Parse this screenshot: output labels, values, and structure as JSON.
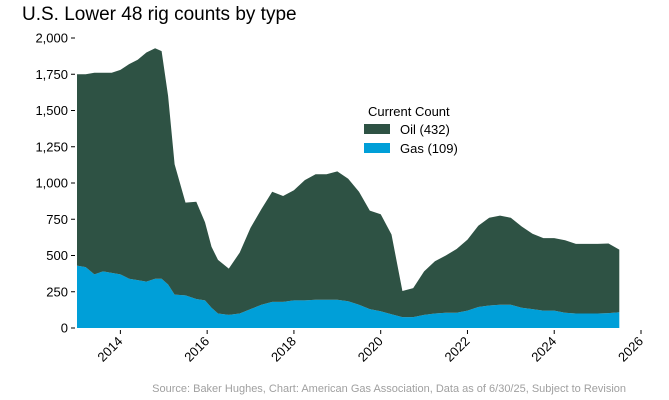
{
  "chart_data": {
    "type": "area",
    "stacked": true,
    "title": "U.S. Lower 48 rig counts by type",
    "xlabel": "",
    "ylabel": "",
    "xlim": [
      2013.0,
      2026.0
    ],
    "ylim": [
      0,
      2000
    ],
    "x_ticks": [
      2014,
      2016,
      2018,
      2020,
      2022,
      2024,
      2026
    ],
    "x_tick_labels": [
      "2014",
      "2016",
      "2018",
      "2020",
      "2022",
      "2024",
      "2026"
    ],
    "y_ticks": [
      0,
      250,
      500,
      750,
      1000,
      1250,
      1500,
      1750,
      2000
    ],
    "y_tick_labels": [
      "0",
      "250",
      "500",
      "750",
      "1,000",
      "1,250",
      "1,500",
      "1,750",
      "2,000"
    ],
    "grid": false,
    "legend": {
      "title": "Current Count",
      "placement": "upper-center"
    },
    "series": [
      {
        "name": "Gas (109)",
        "color": "#009fd8",
        "points": [
          [
            2013.0,
            430
          ],
          [
            2013.2,
            420
          ],
          [
            2013.4,
            370
          ],
          [
            2013.6,
            390
          ],
          [
            2013.8,
            380
          ],
          [
            2014.0,
            370
          ],
          [
            2014.2,
            340
          ],
          [
            2014.4,
            330
          ],
          [
            2014.6,
            320
          ],
          [
            2014.8,
            340
          ],
          [
            2014.95,
            340
          ],
          [
            2015.1,
            300
          ],
          [
            2015.25,
            230
          ],
          [
            2015.5,
            225
          ],
          [
            2015.75,
            200
          ],
          [
            2015.95,
            190
          ],
          [
            2016.1,
            140
          ],
          [
            2016.25,
            100
          ],
          [
            2016.5,
            90
          ],
          [
            2016.75,
            100
          ],
          [
            2017.0,
            130
          ],
          [
            2017.25,
            160
          ],
          [
            2017.5,
            180
          ],
          [
            2017.75,
            180
          ],
          [
            2018.0,
            190
          ],
          [
            2018.25,
            190
          ],
          [
            2018.5,
            195
          ],
          [
            2018.75,
            195
          ],
          [
            2019.0,
            195
          ],
          [
            2019.25,
            185
          ],
          [
            2019.5,
            160
          ],
          [
            2019.75,
            130
          ],
          [
            2020.0,
            115
          ],
          [
            2020.25,
            95
          ],
          [
            2020.5,
            75
          ],
          [
            2020.75,
            75
          ],
          [
            2021.0,
            90
          ],
          [
            2021.25,
            100
          ],
          [
            2021.5,
            105
          ],
          [
            2021.75,
            105
          ],
          [
            2022.0,
            120
          ],
          [
            2022.25,
            145
          ],
          [
            2022.5,
            155
          ],
          [
            2022.75,
            160
          ],
          [
            2023.0,
            160
          ],
          [
            2023.25,
            140
          ],
          [
            2023.5,
            130
          ],
          [
            2023.75,
            120
          ],
          [
            2024.0,
            120
          ],
          [
            2024.25,
            105
          ],
          [
            2024.5,
            100
          ],
          [
            2024.75,
            100
          ],
          [
            2025.0,
            100
          ],
          [
            2025.25,
            103
          ],
          [
            2025.5,
            109
          ]
        ]
      },
      {
        "name": "Oil (432)",
        "color": "#2e5244",
        "points": [
          [
            2013.0,
            1320
          ],
          [
            2013.2,
            1330
          ],
          [
            2013.4,
            1390
          ],
          [
            2013.6,
            1370
          ],
          [
            2013.8,
            1380
          ],
          [
            2014.0,
            1410
          ],
          [
            2014.2,
            1480
          ],
          [
            2014.4,
            1520
          ],
          [
            2014.6,
            1580
          ],
          [
            2014.8,
            1590
          ],
          [
            2014.95,
            1570
          ],
          [
            2015.1,
            1300
          ],
          [
            2015.25,
            900
          ],
          [
            2015.5,
            640
          ],
          [
            2015.75,
            670
          ],
          [
            2015.95,
            540
          ],
          [
            2016.1,
            420
          ],
          [
            2016.25,
            370
          ],
          [
            2016.5,
            320
          ],
          [
            2016.75,
            420
          ],
          [
            2017.0,
            560
          ],
          [
            2017.25,
            660
          ],
          [
            2017.5,
            760
          ],
          [
            2017.75,
            730
          ],
          [
            2018.0,
            760
          ],
          [
            2018.25,
            830
          ],
          [
            2018.5,
            865
          ],
          [
            2018.75,
            865
          ],
          [
            2019.0,
            885
          ],
          [
            2019.25,
            845
          ],
          [
            2019.5,
            780
          ],
          [
            2019.75,
            680
          ],
          [
            2020.0,
            670
          ],
          [
            2020.25,
            550
          ],
          [
            2020.5,
            180
          ],
          [
            2020.75,
            200
          ],
          [
            2021.0,
            300
          ],
          [
            2021.25,
            360
          ],
          [
            2021.5,
            395
          ],
          [
            2021.75,
            440
          ],
          [
            2022.0,
            490
          ],
          [
            2022.25,
            560
          ],
          [
            2022.5,
            605
          ],
          [
            2022.75,
            615
          ],
          [
            2023.0,
            600
          ],
          [
            2023.25,
            560
          ],
          [
            2023.5,
            520
          ],
          [
            2023.75,
            500
          ],
          [
            2024.0,
            500
          ],
          [
            2024.25,
            500
          ],
          [
            2024.5,
            480
          ],
          [
            2024.75,
            480
          ],
          [
            2025.0,
            480
          ],
          [
            2025.25,
            480
          ],
          [
            2025.5,
            432
          ]
        ]
      }
    ],
    "source": "Source: Baker Hughes, Chart: American Gas Association, Data as of 6/30/25, Subject to Revision"
  }
}
